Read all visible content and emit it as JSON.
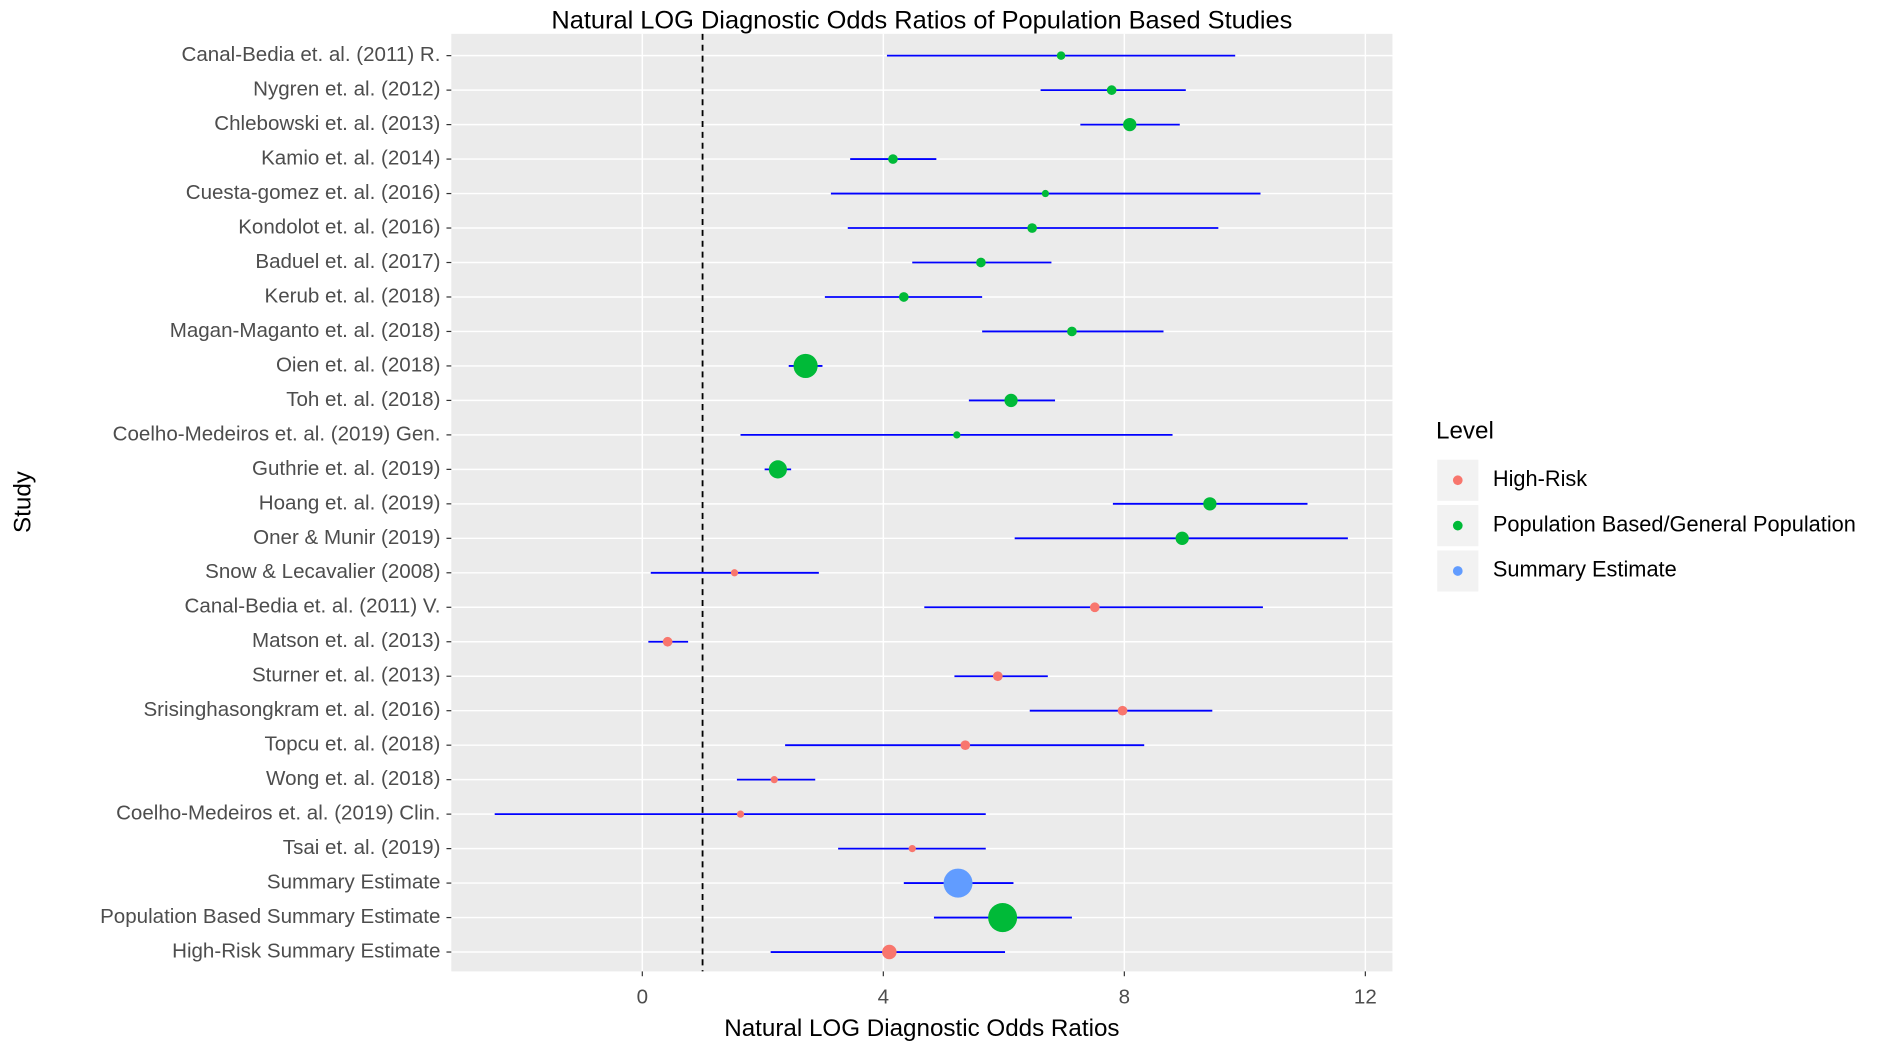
{
  "chart_data": {
    "type": "forest",
    "title": "Natural LOG Diagnostic Odds Ratios of Population Based Studies",
    "xlabel": "Natural LOG Diagnostic Odds Ratios",
    "ylabel": "Study",
    "legend_title": "Level",
    "groups": [
      {
        "name": "High-Risk",
        "color": "#F8766D"
      },
      {
        "name": "Population Based/General Population",
        "color": "#00BA38"
      },
      {
        "name": "Summary Estimate",
        "color": "#619CFF"
      }
    ],
    "interval_color": "#0000FF",
    "categories": [
      "Canal-Bedia et. al. (2011) R.",
      "Nygren et. al. (2012)",
      "Chlebowski et. al. (2013)",
      "Kamio et. al. (2014)",
      "Cuesta-gomez et. al. (2016)",
      "Kondolot et. al. (2016)",
      "Baduel et. al. (2017)",
      "Kerub et. al. (2018)",
      "Magan-Maganto et. al. (2018)",
      "Oien et. al. (2018)",
      "Toh et. al. (2018)",
      "Coelho-Medeiros et. al. (2019) Gen.",
      "Guthrie et. al. (2019)",
      "Hoang et. al. (2019)",
      "Oner & Munir (2019)",
      "Snow & Lecavalier (2008)",
      "Canal-Bedia et. al. (2011) V.",
      "Matson et. al. (2013)",
      "Sturner et. al. (2013)",
      "Srisinghasongkram et. al. (2016)",
      "Topcu et. al. (2018)",
      "Wong et. al. (2018)",
      "Coelho-Medeiros et. al. (2019) Clin.",
      "Tsai et. al. (2019)",
      "Summary Estimate",
      "Population Based Summary Estimate",
      "High-Risk Summary Estimate"
    ],
    "levels": [
      1,
      1,
      1,
      1,
      1,
      1,
      1,
      1,
      1,
      1,
      1,
      1,
      1,
      1,
      1,
      0,
      0,
      0,
      0,
      0,
      0,
      0,
      0,
      0,
      2,
      1,
      0
    ],
    "values": [
      6.95,
      7.79,
      8.09,
      4.16,
      6.69,
      6.47,
      5.62,
      4.34,
      7.13,
      2.71,
      6.12,
      5.22,
      2.25,
      9.42,
      8.96,
      1.53,
      7.51,
      0.42,
      5.9,
      7.97,
      5.36,
      2.19,
      1.63,
      4.48,
      5.24,
      5.98,
      4.1
    ],
    "lower": [
      4.06,
      6.61,
      7.27,
      3.45,
      3.13,
      3.41,
      4.48,
      3.03,
      5.64,
      2.43,
      5.42,
      1.63,
      2.03,
      7.81,
      6.18,
      0.14,
      4.68,
      0.1,
      5.18,
      6.43,
      2.37,
      1.57,
      -2.45,
      3.25,
      4.34,
      4.84,
      2.13
    ],
    "upper": [
      9.84,
      9.02,
      8.92,
      4.88,
      10.26,
      9.56,
      6.79,
      5.64,
      8.65,
      2.99,
      6.85,
      8.8,
      2.47,
      11.04,
      11.71,
      2.93,
      10.3,
      0.76,
      6.73,
      9.46,
      8.33,
      2.87,
      5.7,
      5.7,
      6.16,
      7.13,
      6.02
    ],
    "sizes": [
      3.5,
      4,
      5.5,
      4,
      3,
      4,
      4,
      4,
      4,
      10,
      5.5,
      3,
      7.5,
      5.5,
      5.5,
      3,
      4,
      4,
      4,
      4,
      4,
      3,
      3,
      3,
      12,
      12,
      6
    ],
    "refline": 1,
    "xlim": [
      -3.17,
      12.45
    ],
    "xticks": [
      0,
      4,
      8,
      12
    ],
    "grid": true
  }
}
